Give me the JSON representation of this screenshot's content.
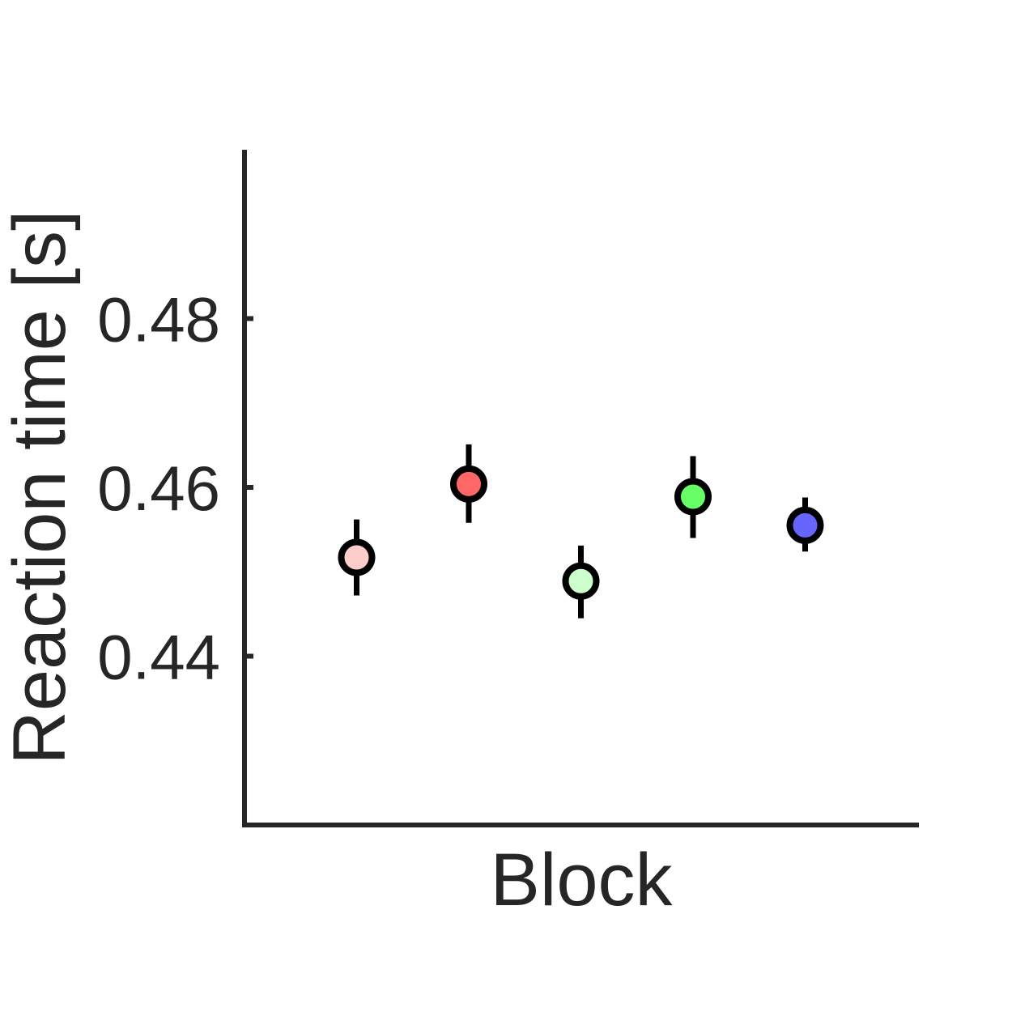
{
  "chart_data": {
    "type": "scatter",
    "xlabel": "Block",
    "ylabel": "Reaction time [s]",
    "ylim": [
      0.42,
      0.5
    ],
    "yticks": [
      0.44,
      0.46,
      0.48
    ],
    "ytick_labels": [
      "0.44",
      "0.46",
      "0.48"
    ],
    "grid": false,
    "points": [
      {
        "x": 1,
        "y": 0.4517,
        "err_low": 0.4472,
        "err_high": 0.4562,
        "color": "#ffcccc"
      },
      {
        "x": 2,
        "y": 0.4604,
        "err_low": 0.4558,
        "err_high": 0.4651,
        "color": "#ff6666"
      },
      {
        "x": 3,
        "y": 0.4489,
        "err_low": 0.4445,
        "err_high": 0.4531,
        "color": "#ccffcc"
      },
      {
        "x": 4,
        "y": 0.4589,
        "err_low": 0.454,
        "err_high": 0.4637,
        "color": "#66ff66"
      },
      {
        "x": 5,
        "y": 0.4555,
        "err_low": 0.4524,
        "err_high": 0.4588,
        "color": "#6666ff"
      }
    ],
    "xlim": [
      0,
      6
    ]
  }
}
